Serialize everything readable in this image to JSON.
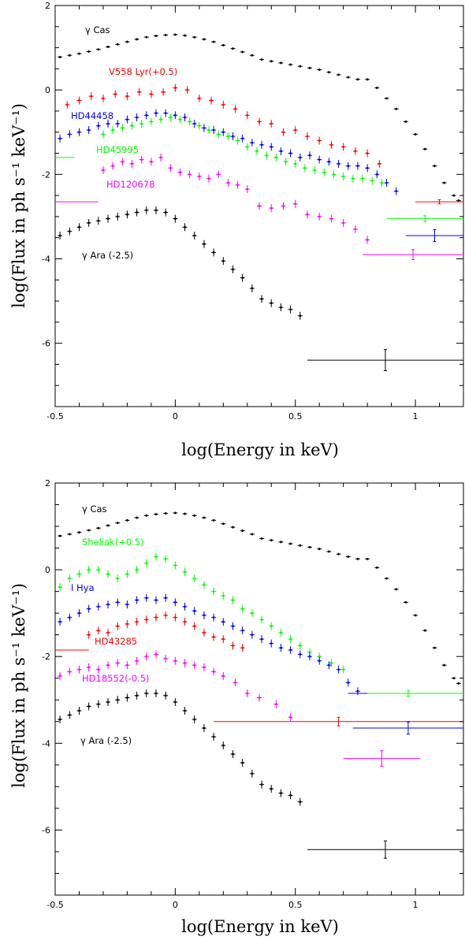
{
  "chart_data": [
    {
      "type": "scatter",
      "xlabel": "log(Energy in keV)",
      "ylabel": "log(Flux in ph s⁻¹ keV⁻¹)",
      "xlim": [
        -0.5,
        1.2
      ],
      "ylim": [
        -7.5,
        2
      ],
      "x_ticks": [
        "-0.5",
        "0",
        "0.5",
        "1"
      ],
      "y_ticks": [
        "-6",
        "-4",
        "-2",
        "0",
        "2"
      ],
      "series": [
        {
          "name": "γ Cas",
          "color": "#000000",
          "x": [
            -0.48,
            -0.44,
            -0.4,
            -0.36,
            -0.32,
            -0.28,
            -0.24,
            -0.2,
            -0.16,
            -0.12,
            -0.08,
            -0.04,
            0.0,
            0.04,
            0.08,
            0.12,
            0.16,
            0.2,
            0.24,
            0.28,
            0.32,
            0.36,
            0.4,
            0.44,
            0.48,
            0.52,
            0.56,
            0.6,
            0.64,
            0.68,
            0.72,
            0.76,
            0.8,
            0.84,
            0.88,
            0.92,
            0.96,
            1.0,
            1.04,
            1.08,
            1.12,
            1.16,
            1.18
          ],
          "y": [
            0.78,
            0.82,
            0.86,
            0.91,
            0.96,
            1.02,
            1.08,
            1.14,
            1.2,
            1.25,
            1.28,
            1.3,
            1.31,
            1.29,
            1.25,
            1.2,
            1.14,
            1.06,
            0.98,
            0.9,
            0.82,
            0.72,
            0.68,
            0.64,
            0.6,
            0.56,
            0.52,
            0.48,
            0.42,
            0.36,
            0.3,
            0.25,
            0.25,
            0.05,
            -0.2,
            -0.45,
            -0.75,
            -1.05,
            -1.4,
            -1.8,
            -2.2,
            -2.5,
            -2.62
          ]
        },
        {
          "name": "V558 Lyr(+0.5)",
          "color": "#ff0000",
          "x": [
            -0.45,
            -0.4,
            -0.35,
            -0.3,
            -0.25,
            -0.2,
            -0.15,
            -0.1,
            -0.05,
            0.0,
            0.05,
            0.1,
            0.15,
            0.2,
            0.25,
            0.3,
            0.35,
            0.4,
            0.45,
            0.5,
            0.55,
            0.6,
            0.65,
            0.7,
            0.75,
            0.8,
            0.85
          ],
          "y": [
            -0.35,
            -0.25,
            -0.15,
            -0.2,
            -0.1,
            -0.15,
            -0.05,
            -0.1,
            -0.05,
            0.05,
            0.0,
            -0.2,
            -0.25,
            -0.35,
            -0.45,
            -0.6,
            -0.75,
            -0.8,
            -1.0,
            -0.95,
            -1.1,
            -1.2,
            -1.3,
            -1.35,
            -1.45,
            -1.5,
            -1.75
          ]
        },
        {
          "name": "HD44458",
          "color": "#0000ff",
          "x": [
            -0.48,
            -0.44,
            -0.4,
            -0.36,
            -0.32,
            -0.28,
            -0.24,
            -0.2,
            -0.16,
            -0.12,
            -0.08,
            -0.04,
            0.0,
            0.04,
            0.08,
            0.12,
            0.16,
            0.2,
            0.24,
            0.28,
            0.32,
            0.36,
            0.4,
            0.44,
            0.48,
            0.52,
            0.56,
            0.6,
            0.64,
            0.68,
            0.72,
            0.76,
            0.8,
            0.84,
            0.88,
            0.92
          ],
          "y": [
            -1.15,
            -1.05,
            -1.0,
            -0.95,
            -0.85,
            -0.8,
            -0.8,
            -0.7,
            -0.65,
            -0.6,
            -0.55,
            -0.55,
            -0.6,
            -0.65,
            -0.8,
            -0.9,
            -0.95,
            -1.0,
            -1.1,
            -1.15,
            -1.25,
            -1.3,
            -1.35,
            -1.45,
            -1.5,
            -1.6,
            -1.55,
            -1.65,
            -1.7,
            -1.75,
            -1.8,
            -1.8,
            -1.85,
            -2.0,
            -2.2,
            -2.4
          ]
        },
        {
          "name": "HD45995",
          "color": "#00ff00",
          "x": [
            -0.3,
            -0.26,
            -0.22,
            -0.18,
            -0.14,
            -0.1,
            -0.06,
            -0.02,
            0.02,
            0.06,
            0.1,
            0.14,
            0.18,
            0.22,
            0.26,
            0.3,
            0.34,
            0.38,
            0.42,
            0.46,
            0.5,
            0.54,
            0.58,
            0.62,
            0.66,
            0.7,
            0.74,
            0.78,
            0.82,
            0.86
          ],
          "y": [
            -1.05,
            -0.95,
            -0.9,
            -0.85,
            -0.8,
            -0.75,
            -0.7,
            -0.65,
            -0.7,
            -0.75,
            -0.85,
            -0.95,
            -1.05,
            -1.1,
            -1.2,
            -1.35,
            -1.45,
            -1.55,
            -1.6,
            -1.7,
            -1.75,
            -1.85,
            -1.9,
            -1.95,
            -2.0,
            -2.05,
            -2.1,
            -2.1,
            -2.15,
            -2.2
          ]
        },
        {
          "name": "HD120678",
          "color": "#ff00ff",
          "x": [
            -0.3,
            -0.26,
            -0.22,
            -0.18,
            -0.14,
            -0.1,
            -0.06,
            -0.02,
            0.02,
            0.06,
            0.1,
            0.14,
            0.18,
            0.22,
            0.26,
            0.3,
            0.35,
            0.4,
            0.45,
            0.5,
            0.55,
            0.6,
            0.65,
            0.7,
            0.75,
            0.8
          ],
          "y": [
            -1.9,
            -1.8,
            -1.7,
            -1.75,
            -1.65,
            -1.7,
            -1.6,
            -1.85,
            -1.95,
            -2.0,
            -2.05,
            -2.1,
            -2.0,
            -2.2,
            -2.25,
            -2.35,
            -2.75,
            -2.8,
            -2.75,
            -2.7,
            -2.95,
            -3.0,
            -3.05,
            -3.15,
            -3.3,
            -3.55
          ]
        },
        {
          "name": "γ Ara (-2.5)",
          "color": "#000000",
          "x": [
            -0.48,
            -0.44,
            -0.4,
            -0.36,
            -0.32,
            -0.28,
            -0.24,
            -0.2,
            -0.16,
            -0.12,
            -0.08,
            -0.04,
            0.0,
            0.04,
            0.08,
            0.12,
            0.16,
            0.2,
            0.24,
            0.28,
            0.32,
            0.36,
            0.4,
            0.44,
            0.48,
            0.52
          ],
          "y": [
            -3.45,
            -3.35,
            -3.25,
            -3.15,
            -3.1,
            -3.05,
            -3.0,
            -2.95,
            -2.9,
            -2.85,
            -2.85,
            -2.9,
            -3.05,
            -3.25,
            -3.45,
            -3.65,
            -3.85,
            -4.05,
            -4.25,
            -4.45,
            -4.7,
            -4.95,
            -5.05,
            -5.15,
            -5.2,
            -5.35
          ]
        }
      ],
      "horizontal_bars": [
        {
          "color": "#ff0000",
          "x1": 1.0,
          "x2": 1.2,
          "y": -2.65,
          "err": 0.05
        },
        {
          "color": "#00ff00",
          "x1": 0.88,
          "x2": 1.2,
          "y": -3.05,
          "err": 0.07
        },
        {
          "color": "#0000ff",
          "x1": 0.96,
          "x2": 1.2,
          "y": -3.45,
          "err": 0.14
        },
        {
          "color": "#ff00ff",
          "x1": 0.78,
          "x2": 1.2,
          "y": -3.9,
          "err": 0.12
        },
        {
          "color": "#ff00ff",
          "x1": -0.5,
          "x2": -0.32,
          "y": -2.65,
          "err": 0.0
        },
        {
          "color": "#00ff00",
          "x1": -0.5,
          "x2": -0.42,
          "y": -1.6,
          "err": 0.0
        },
        {
          "color": "#000000",
          "x1": 0.55,
          "x2": 1.2,
          "y": -6.4,
          "err": 0.25
        }
      ]
    },
    {
      "type": "scatter",
      "xlabel": "log(Energy in keV)",
      "ylabel": "log(Flux in ph s⁻¹ keV⁻¹)",
      "xlim": [
        -0.5,
        1.2
      ],
      "ylim": [
        -7.5,
        2
      ],
      "x_ticks": [
        "-0.5",
        "0",
        "0.5",
        "1"
      ],
      "y_ticks": [
        "-6",
        "-4",
        "-2",
        "0",
        "2"
      ],
      "series": [
        {
          "name": "γ Cas",
          "color": "#000000",
          "x": [
            -0.48,
            -0.44,
            -0.4,
            -0.36,
            -0.32,
            -0.28,
            -0.24,
            -0.2,
            -0.16,
            -0.12,
            -0.08,
            -0.04,
            0.0,
            0.04,
            0.08,
            0.12,
            0.16,
            0.2,
            0.24,
            0.28,
            0.32,
            0.36,
            0.4,
            0.44,
            0.48,
            0.52,
            0.56,
            0.6,
            0.64,
            0.68,
            0.72,
            0.76,
            0.8,
            0.84,
            0.88,
            0.92,
            0.96,
            1.0,
            1.04,
            1.08,
            1.12,
            1.16,
            1.18
          ],
          "y": [
            0.78,
            0.82,
            0.86,
            0.91,
            0.96,
            1.02,
            1.08,
            1.14,
            1.2,
            1.25,
            1.28,
            1.3,
            1.31,
            1.29,
            1.25,
            1.2,
            1.14,
            1.06,
            0.98,
            0.9,
            0.82,
            0.72,
            0.68,
            0.64,
            0.6,
            0.56,
            0.52,
            0.48,
            0.42,
            0.36,
            0.3,
            0.25,
            0.25,
            0.05,
            -0.2,
            -0.45,
            -0.75,
            -1.05,
            -1.4,
            -1.8,
            -2.2,
            -2.5,
            -2.62
          ]
        },
        {
          "name": "Sheliak(+0.5)",
          "color": "#00ff00",
          "x": [
            -0.48,
            -0.44,
            -0.4,
            -0.36,
            -0.32,
            -0.28,
            -0.24,
            -0.2,
            -0.16,
            -0.12,
            -0.08,
            -0.04,
            0.0,
            0.04,
            0.08,
            0.12,
            0.16,
            0.2,
            0.24,
            0.28,
            0.32,
            0.36,
            0.4,
            0.44,
            0.48,
            0.52,
            0.56,
            0.6,
            0.65,
            0.7
          ],
          "y": [
            -0.4,
            -0.2,
            -0.1,
            0.0,
            0.0,
            -0.1,
            -0.2,
            -0.1,
            0.0,
            0.15,
            0.3,
            0.25,
            0.1,
            -0.05,
            -0.2,
            -0.35,
            -0.5,
            -0.6,
            -0.7,
            -0.9,
            -1.0,
            -1.15,
            -1.3,
            -1.45,
            -1.6,
            -1.75,
            -1.9,
            -2.0,
            -2.15,
            -2.3
          ]
        },
        {
          "name": "I Hya",
          "color": "#0000ff",
          "x": [
            -0.48,
            -0.44,
            -0.4,
            -0.36,
            -0.32,
            -0.28,
            -0.24,
            -0.2,
            -0.16,
            -0.12,
            -0.08,
            -0.04,
            0.0,
            0.04,
            0.08,
            0.12,
            0.16,
            0.2,
            0.24,
            0.28,
            0.32,
            0.36,
            0.4,
            0.44,
            0.48,
            0.52,
            0.56,
            0.6,
            0.64,
            0.68,
            0.72,
            0.76
          ],
          "y": [
            -1.2,
            -1.1,
            -1.0,
            -0.9,
            -0.85,
            -0.8,
            -0.75,
            -0.8,
            -0.7,
            -0.65,
            -0.7,
            -0.65,
            -0.75,
            -0.85,
            -0.95,
            -1.05,
            -1.1,
            -1.2,
            -1.3,
            -1.4,
            -1.5,
            -1.6,
            -1.7,
            -1.8,
            -1.85,
            -1.95,
            -2.0,
            -2.1,
            -2.2,
            -2.3,
            -2.6,
            -2.8
          ]
        },
        {
          "name": "HD43285",
          "color": "#ff0000",
          "x": [
            -0.36,
            -0.32,
            -0.28,
            -0.24,
            -0.2,
            -0.16,
            -0.12,
            -0.08,
            -0.04,
            0.0,
            0.04,
            0.08,
            0.12,
            0.16,
            0.2,
            0.24,
            0.28
          ],
          "y": [
            -1.5,
            -1.4,
            -1.45,
            -1.3,
            -1.25,
            -1.2,
            -1.15,
            -1.1,
            -1.05,
            -1.1,
            -1.2,
            -1.3,
            -1.45,
            -1.55,
            -1.6,
            -1.75,
            -1.8
          ]
        },
        {
          "name": "HD18552(-0.5)",
          "color": "#ff00ff",
          "x": [
            -0.48,
            -0.44,
            -0.4,
            -0.36,
            -0.32,
            -0.28,
            -0.24,
            -0.2,
            -0.16,
            -0.12,
            -0.08,
            -0.04,
            0.0,
            0.04,
            0.08,
            0.12,
            0.16,
            0.2,
            0.25,
            0.3,
            0.35,
            0.42,
            0.48
          ],
          "y": [
            -2.45,
            -2.35,
            -2.3,
            -2.25,
            -2.3,
            -2.2,
            -2.15,
            -2.2,
            -2.1,
            -2.0,
            -1.95,
            -2.05,
            -2.1,
            -2.15,
            -2.2,
            -2.25,
            -2.35,
            -2.45,
            -2.6,
            -2.85,
            -2.95,
            -3.1,
            -3.4
          ]
        },
        {
          "name": "γ Ara (-2.5)",
          "color": "#000000",
          "x": [
            -0.48,
            -0.44,
            -0.4,
            -0.36,
            -0.32,
            -0.28,
            -0.24,
            -0.2,
            -0.16,
            -0.12,
            -0.08,
            -0.04,
            0.0,
            0.04,
            0.08,
            0.12,
            0.16,
            0.2,
            0.24,
            0.28,
            0.32,
            0.36,
            0.4,
            0.44,
            0.48,
            0.52
          ],
          "y": [
            -3.45,
            -3.35,
            -3.25,
            -3.15,
            -3.1,
            -3.05,
            -3.0,
            -2.95,
            -2.9,
            -2.85,
            -2.85,
            -2.9,
            -3.05,
            -3.25,
            -3.45,
            -3.65,
            -3.85,
            -4.05,
            -4.25,
            -4.45,
            -4.7,
            -4.95,
            -5.05,
            -5.15,
            -5.2,
            -5.35
          ]
        }
      ],
      "horizontal_bars": [
        {
          "color": "#00ff00",
          "x1": 0.74,
          "x2": 1.2,
          "y": -2.85,
          "err": 0.07
        },
        {
          "color": "#ff0000",
          "x1": 0.16,
          "x2": 1.2,
          "y": -3.5,
          "err": 0.1
        },
        {
          "color": "#0000ff",
          "x1": 0.74,
          "x2": 1.2,
          "y": -3.65,
          "err": 0.14
        },
        {
          "color": "#ff00ff",
          "x1": 0.7,
          "x2": 1.02,
          "y": -4.35,
          "err": 0.18
        },
        {
          "color": "#0000ff",
          "x1": 0.72,
          "x2": 0.8,
          "y": -2.85,
          "err": 0.0
        },
        {
          "color": "#ff0000",
          "x1": -0.5,
          "x2": -0.36,
          "y": -1.85,
          "err": 0.0
        },
        {
          "color": "#000000",
          "x1": 0.55,
          "x2": 1.2,
          "y": -6.45,
          "err": 0.2
        }
      ]
    }
  ]
}
